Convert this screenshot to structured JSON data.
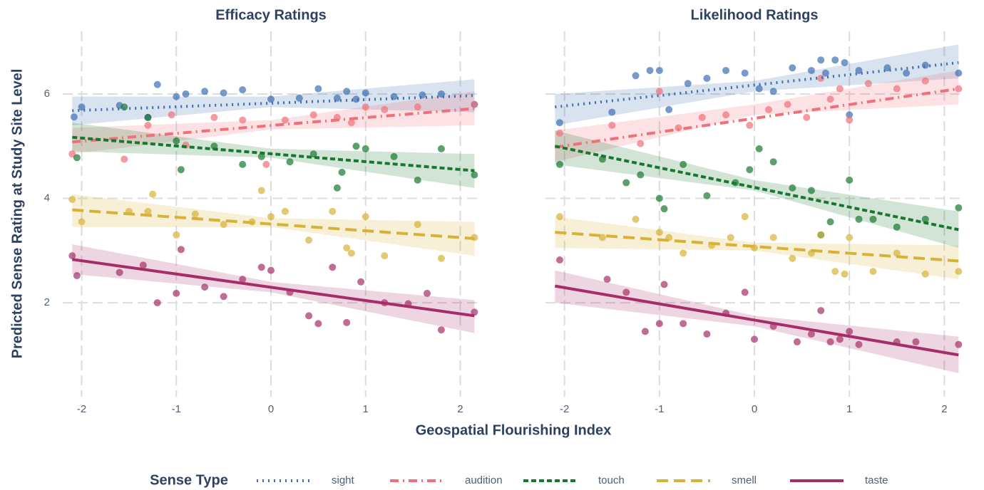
{
  "ylabel": "Predicted Sense Rating at Study Site Level",
  "xlabel": "Geospatial Flourishing Index",
  "legend_title": "Sense Type",
  "chart_data": [
    {
      "type": "scatter",
      "title": "Efficacy Ratings",
      "xlim": [
        -2.2,
        2.2
      ],
      "ylim": [
        0.2,
        7.2
      ],
      "xticks": [
        -2,
        -1,
        0,
        1,
        2
      ],
      "yticks": [
        2,
        4,
        6
      ],
      "grid": true,
      "series": [
        {
          "name": "sight",
          "color": "#3f6fb0",
          "dash": "dotted",
          "x": [
            -2.08,
            -2.0,
            -1.6,
            -1.3,
            -1.2,
            -1.0,
            -0.9,
            -0.7,
            -0.5,
            -0.3,
            0.0,
            0.3,
            0.5,
            0.7,
            0.8,
            0.9,
            1.0,
            1.3,
            1.6,
            1.8,
            2.15
          ],
          "values": [
            5.56,
            5.75,
            5.78,
            5.55,
            6.18,
            5.95,
            6.0,
            6.05,
            6.02,
            6.08,
            5.9,
            5.92,
            6.1,
            5.92,
            6.05,
            5.9,
            6.02,
            5.95,
            5.98,
            6.0,
            5.8
          ],
          "fit": {
            "x": [
              -2.1,
              2.15
            ],
            "values": [
              5.68,
              5.97
            ]
          },
          "band": {
            "x": [
              -2.1,
              0,
              2.15
            ],
            "lower": [
              5.4,
              5.75,
              5.65
            ],
            "upper": [
              5.95,
              5.95,
              6.28
            ]
          }
        },
        {
          "name": "audition",
          "color": "#f0707a",
          "dash": "dotdash",
          "x": [
            -2.1,
            -1.55,
            -1.3,
            -1.05,
            -0.9,
            -0.6,
            -0.3,
            -0.05,
            0.15,
            0.45,
            0.7,
            0.85,
            1.0,
            1.2,
            1.55,
            2.15
          ],
          "values": [
            4.85,
            4.75,
            5.4,
            5.6,
            5.02,
            5.55,
            5.5,
            4.65,
            5.5,
            5.6,
            5.55,
            5.45,
            5.75,
            5.7,
            5.75,
            5.8
          ],
          "fit": {
            "x": [
              -2.1,
              2.15
            ],
            "values": [
              5.08,
              5.72
            ]
          },
          "band": {
            "x": [
              -2.1,
              0,
              2.15
            ],
            "lower": [
              4.85,
              5.32,
              5.4
            ],
            "upper": [
              5.35,
              5.5,
              6.05
            ]
          }
        },
        {
          "name": "touch",
          "color": "#17772f",
          "dash": "dashed",
          "x": [
            -2.05,
            -1.55,
            -1.3,
            -1.0,
            -0.95,
            -0.6,
            -0.3,
            -0.1,
            0.2,
            0.45,
            0.7,
            0.75,
            0.9,
            1.0,
            1.3,
            1.55,
            1.8,
            2.15
          ],
          "values": [
            4.78,
            5.75,
            5.55,
            5.1,
            4.55,
            5.0,
            4.65,
            4.8,
            4.7,
            4.85,
            4.2,
            4.5,
            5.0,
            4.95,
            4.8,
            4.35,
            4.95,
            4.45
          ],
          "fit": {
            "x": [
              -2.1,
              2.15
            ],
            "values": [
              5.17,
              4.53
            ]
          },
          "band": {
            "x": [
              -2.1,
              0,
              2.15
            ],
            "lower": [
              4.9,
              4.78,
              4.2
            ],
            "upper": [
              5.45,
              4.95,
              4.85
            ]
          }
        },
        {
          "name": "smell",
          "color": "#d6b236",
          "dash": "longdash",
          "x": [
            -2.1,
            -2.0,
            -1.5,
            -1.3,
            -1.25,
            -1.0,
            -0.8,
            -0.5,
            -0.2,
            -0.1,
            0.0,
            0.15,
            0.4,
            0.65,
            0.8,
            0.85,
            1.0,
            1.2,
            1.55,
            1.8,
            2.15
          ],
          "values": [
            3.98,
            3.55,
            3.75,
            3.75,
            4.08,
            3.3,
            3.7,
            3.5,
            3.55,
            4.15,
            3.65,
            3.75,
            3.2,
            3.75,
            3.05,
            2.95,
            3.65,
            2.9,
            3.5,
            2.85,
            3.25
          ],
          "fit": {
            "x": [
              -2.1,
              2.15
            ],
            "values": [
              3.78,
              3.23
            ]
          },
          "band": {
            "x": [
              -2.1,
              0,
              2.15
            ],
            "lower": [
              3.45,
              3.45,
              2.9
            ],
            "upper": [
              4.08,
              3.62,
              3.55
            ]
          }
        },
        {
          "name": "taste",
          "color": "#a62d68",
          "dash": "solid",
          "x": [
            -2.1,
            -2.05,
            -1.6,
            -1.35,
            -1.2,
            -1.0,
            -0.95,
            -0.7,
            -0.5,
            -0.3,
            -0.1,
            0.0,
            0.2,
            0.4,
            0.5,
            0.65,
            0.8,
            0.95,
            1.2,
            1.45,
            1.65,
            1.8,
            2.15
          ],
          "values": [
            2.9,
            2.52,
            2.58,
            2.72,
            2.0,
            2.18,
            3.02,
            2.3,
            2.12,
            2.45,
            2.68,
            2.62,
            2.2,
            1.75,
            1.6,
            2.68,
            1.62,
            2.4,
            2.0,
            1.98,
            2.18,
            1.48,
            1.82
          ],
          "fit": {
            "x": [
              -2.1,
              2.15
            ],
            "values": [
              2.83,
              1.75
            ]
          },
          "band": {
            "x": [
              -2.1,
              0,
              2.15
            ],
            "lower": [
              2.55,
              2.2,
              1.42
            ],
            "upper": [
              3.12,
              2.4,
              2.05
            ]
          }
        }
      ]
    },
    {
      "type": "scatter",
      "title": "Likelihood Ratings",
      "xlim": [
        -2.2,
        2.2
      ],
      "ylim": [
        0.2,
        7.2
      ],
      "xticks": [
        -2,
        -1,
        0,
        1,
        2
      ],
      "yticks": [
        2,
        4,
        6
      ],
      "grid": true,
      "series": [
        {
          "name": "sight",
          "color": "#3f6fb0",
          "dash": "dotted",
          "x": [
            -2.05,
            -1.5,
            -1.25,
            -1.1,
            -1.0,
            -0.9,
            -0.7,
            -0.5,
            -0.3,
            -0.1,
            0.05,
            0.2,
            0.4,
            0.6,
            0.7,
            0.75,
            0.85,
            0.95,
            1.0,
            1.1,
            1.4,
            1.6,
            1.8,
            2.15
          ],
          "values": [
            5.45,
            5.65,
            6.35,
            6.45,
            6.45,
            5.7,
            6.2,
            6.3,
            6.45,
            6.4,
            6.1,
            6.05,
            6.5,
            6.45,
            6.65,
            6.4,
            6.65,
            6.6,
            5.6,
            6.45,
            6.5,
            6.4,
            6.55,
            6.4
          ],
          "fit": {
            "x": [
              -2.1,
              2.15
            ],
            "values": [
              5.75,
              6.6
            ]
          },
          "band": {
            "x": [
              -2.1,
              0,
              2.15
            ],
            "lower": [
              5.4,
              6.05,
              6.3
            ],
            "upper": [
              6.0,
              6.25,
              6.95
            ]
          }
        },
        {
          "name": "audition",
          "color": "#f0707a",
          "dash": "dotdash",
          "x": [
            -2.05,
            -1.5,
            -1.2,
            -1.0,
            -0.8,
            -0.55,
            -0.3,
            -0.05,
            0.15,
            0.35,
            0.55,
            0.7,
            0.8,
            0.9,
            1.0,
            1.2,
            1.5,
            1.8,
            2.15
          ],
          "values": [
            5.25,
            5.4,
            5.05,
            6.05,
            5.35,
            5.55,
            5.6,
            5.4,
            5.7,
            5.8,
            5.55,
            6.3,
            5.9,
            6.1,
            5.5,
            6.2,
            6.1,
            6.25,
            6.1
          ],
          "fit": {
            "x": [
              -2.1,
              2.15
            ],
            "values": [
              4.98,
              6.1
            ]
          },
          "band": {
            "x": [
              -2.1,
              0,
              2.15
            ],
            "lower": [
              4.7,
              5.6,
              5.8
            ],
            "upper": [
              5.3,
              5.8,
              6.45
            ]
          }
        },
        {
          "name": "touch",
          "color": "#17772f",
          "dash": "dashed",
          "x": [
            -2.05,
            -1.6,
            -1.35,
            -1.2,
            -1.0,
            -0.95,
            -0.75,
            -0.5,
            -0.2,
            -0.05,
            0.05,
            0.2,
            0.4,
            0.6,
            0.7,
            0.8,
            1.0,
            1.1,
            1.25,
            1.5,
            1.8,
            2.15
          ],
          "values": [
            4.65,
            4.75,
            4.3,
            4.45,
            4.0,
            3.8,
            4.65,
            4.05,
            4.3,
            4.55,
            4.95,
            4.7,
            4.2,
            4.15,
            3.3,
            3.55,
            4.35,
            3.6,
            3.6,
            3.45,
            3.6,
            3.82
          ],
          "fit": {
            "x": [
              -2.1,
              2.15
            ],
            "values": [
              5.0,
              3.4
            ]
          },
          "band": {
            "x": [
              -2.1,
              0,
              2.15
            ],
            "lower": [
              4.65,
              4.15,
              3.05
            ],
            "upper": [
              5.3,
              4.35,
              3.75
            ]
          }
        },
        {
          "name": "smell",
          "color": "#d6b236",
          "dash": "longdash",
          "x": [
            -2.05,
            -1.6,
            -1.25,
            -1.0,
            -0.9,
            -0.75,
            -0.45,
            -0.25,
            -0.1,
            0.0,
            0.2,
            0.4,
            0.6,
            0.7,
            0.85,
            0.95,
            1.0,
            1.25,
            1.5,
            1.8,
            2.15
          ],
          "values": [
            3.65,
            3.25,
            3.6,
            3.35,
            3.25,
            2.95,
            3.1,
            3.25,
            3.65,
            3.05,
            3.25,
            2.85,
            2.95,
            3.3,
            2.6,
            2.55,
            3.25,
            2.6,
            2.95,
            2.55,
            2.6
          ],
          "fit": {
            "x": [
              -2.1,
              2.15
            ],
            "values": [
              3.35,
              2.8
            ]
          },
          "band": {
            "x": [
              -2.1,
              0,
              2.15
            ],
            "lower": [
              3.05,
              3.0,
              2.45
            ],
            "upper": [
              3.65,
              3.15,
              3.1
            ]
          }
        },
        {
          "name": "taste",
          "color": "#a62d68",
          "dash": "solid",
          "x": [
            -2.05,
            -1.55,
            -1.35,
            -1.15,
            -1.0,
            -0.95,
            -0.75,
            -0.5,
            -0.3,
            -0.1,
            0.0,
            0.2,
            0.45,
            0.6,
            0.7,
            0.8,
            0.9,
            1.0,
            1.1,
            1.5,
            1.7,
            2.15
          ],
          "values": [
            2.82,
            2.45,
            2.2,
            1.45,
            1.6,
            2.35,
            1.6,
            1.4,
            1.8,
            2.2,
            1.3,
            1.55,
            1.25,
            1.4,
            1.85,
            1.25,
            1.3,
            1.45,
            1.2,
            1.25,
            1.25,
            1.2
          ],
          "fit": {
            "x": [
              -2.1,
              2.15
            ],
            "values": [
              2.32,
              1.0
            ]
          },
          "band": {
            "x": [
              -2.1,
              0,
              2.15
            ],
            "lower": [
              2.0,
              1.55,
              0.65
            ],
            "upper": [
              2.62,
              1.75,
              1.35
            ]
          }
        }
      ]
    }
  ]
}
